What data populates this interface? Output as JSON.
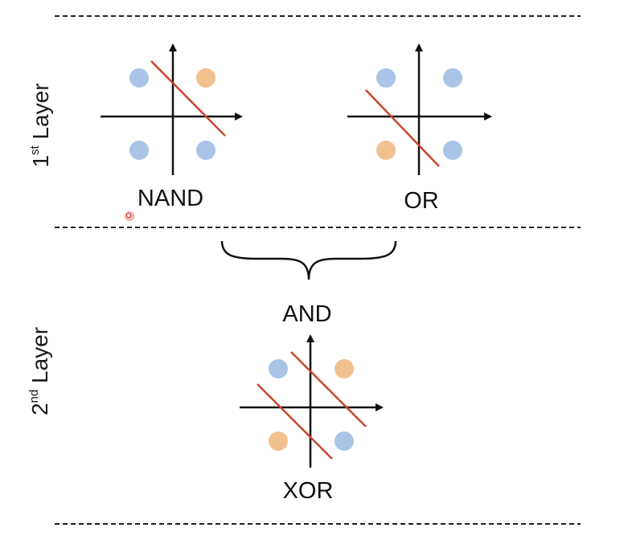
{
  "layers": {
    "first": {
      "number": "1",
      "suffix": "st",
      "word": "Layer"
    },
    "second": {
      "number": "2",
      "suffix": "nd",
      "word": "Layer"
    }
  },
  "gates": {
    "nand": "NAND",
    "or": "OR",
    "and": "AND",
    "xor": "XOR"
  },
  "colors": {
    "blue_point": "#a9c4e6",
    "orange_point": "#f1c08f",
    "boundary_line": "#c8462a",
    "axis": "#111111",
    "divider": "#222222"
  }
}
